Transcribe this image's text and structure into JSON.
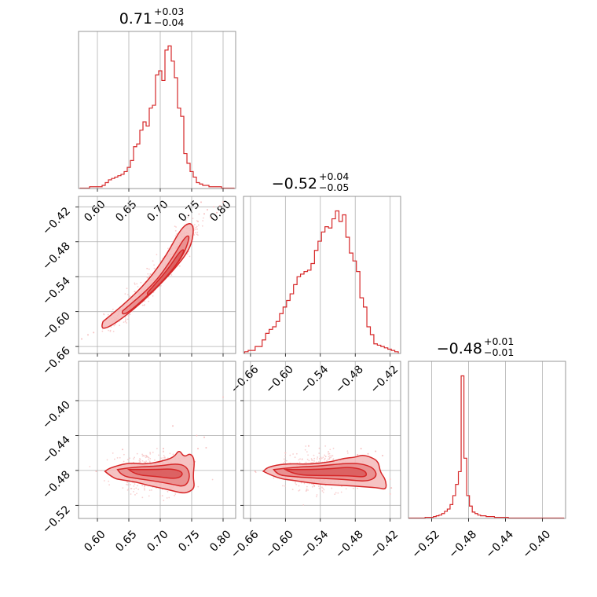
{
  "chart_data": [
    {
      "type": "histogram",
      "panel": "diag-0",
      "title": {
        "value": "0.71",
        "plus": "+0.03",
        "minus": "−0.04"
      },
      "xlim": [
        0.57,
        0.82
      ],
      "x_ticks": [
        "0.60",
        "0.65",
        "0.70",
        "0.75",
        "0.80"
      ],
      "x_tick_values": [
        0.6,
        0.65,
        0.7,
        0.75,
        0.8
      ],
      "bin_centers": [
        0.575,
        0.58,
        0.585,
        0.59,
        0.595,
        0.6,
        0.605,
        0.61,
        0.615,
        0.62,
        0.625,
        0.63,
        0.635,
        0.64,
        0.645,
        0.65,
        0.655,
        0.66,
        0.665,
        0.67,
        0.675,
        0.68,
        0.685,
        0.69,
        0.695,
        0.7,
        0.705,
        0.71,
        0.715,
        0.72,
        0.725,
        0.73,
        0.735,
        0.74,
        0.745,
        0.75,
        0.755,
        0.76,
        0.765,
        0.77,
        0.775,
        0.78,
        0.785,
        0.79,
        0.795,
        0.8,
        0.805,
        0.81,
        0.815
      ],
      "counts": [
        0,
        0,
        0,
        1,
        1,
        1,
        1,
        2,
        4,
        6,
        7,
        8,
        9,
        10,
        12,
        15,
        20,
        30,
        32,
        42,
        48,
        45,
        58,
        60,
        82,
        85,
        78,
        100,
        103,
        92,
        80,
        58,
        52,
        25,
        18,
        12,
        8,
        4,
        3,
        2,
        2,
        1,
        1,
        1,
        1,
        0,
        0,
        0,
        0
      ]
    },
    {
      "type": "histogram",
      "panel": "diag-1",
      "title": {
        "value": "−0.52",
        "plus": "+0.04",
        "minus": "−0.05"
      },
      "xlim": [
        -0.672,
        -0.402
      ],
      "x_ticks": [
        "−0.66",
        "−0.60",
        "−0.54",
        "−0.48",
        "−0.42"
      ],
      "x_tick_values": [
        -0.66,
        -0.6,
        -0.54,
        -0.48,
        -0.42
      ],
      "bin_centers": [
        -0.667,
        -0.661,
        -0.655,
        -0.649,
        -0.643,
        -0.637,
        -0.631,
        -0.625,
        -0.619,
        -0.613,
        -0.607,
        -0.601,
        -0.595,
        -0.589,
        -0.583,
        -0.577,
        -0.571,
        -0.565,
        -0.559,
        -0.553,
        -0.547,
        -0.541,
        -0.535,
        -0.529,
        -0.523,
        -0.517,
        -0.511,
        -0.505,
        -0.499,
        -0.493,
        -0.487,
        -0.481,
        -0.475,
        -0.469,
        -0.463,
        -0.457,
        -0.451,
        -0.445,
        -0.439,
        -0.433,
        -0.427,
        -0.421,
        -0.415,
        -0.409
      ],
      "counts": [
        1,
        2,
        2,
        5,
        5,
        10,
        15,
        18,
        20,
        24,
        30,
        35,
        40,
        45,
        52,
        58,
        60,
        62,
        63,
        68,
        78,
        85,
        92,
        96,
        95,
        102,
        108,
        100,
        105,
        88,
        76,
        70,
        62,
        42,
        35,
        20,
        14,
        7,
        6,
        5,
        4,
        3,
        2,
        1
      ]
    },
    {
      "type": "histogram",
      "panel": "diag-2",
      "title": {
        "value": "−0.48",
        "plus": "+0.01",
        "minus": "−0.01"
      },
      "xlim": [
        -0.545,
        -0.375
      ],
      "x_ticks": [
        "−0.52",
        "−0.48",
        "−0.44",
        "−0.40"
      ],
      "x_tick_values": [
        -0.52,
        -0.48,
        -0.44,
        -0.4
      ],
      "bin_centers": [
        -0.5435,
        -0.5405,
        -0.5375,
        -0.5345,
        -0.5315,
        -0.5285,
        -0.5255,
        -0.5225,
        -0.5195,
        -0.5165,
        -0.5135,
        -0.5105,
        -0.5075,
        -0.5045,
        -0.5015,
        -0.4985,
        -0.4955,
        -0.4925,
        -0.4895,
        -0.4865,
        -0.4835,
        -0.4805,
        -0.4775,
        -0.4745,
        -0.4715,
        -0.4685,
        -0.4655,
        -0.4625,
        -0.4595,
        -0.4565,
        -0.4535,
        -0.4505,
        -0.4475,
        -0.4445,
        -0.4415,
        -0.4385,
        -0.4355,
        -0.4325,
        -0.4295,
        -0.4265,
        -0.4235,
        -0.4205,
        -0.4175,
        -0.4145,
        -0.4115,
        -0.4085,
        -0.4055,
        -0.4025,
        -0.3995,
        -0.3965,
        -0.3935,
        -0.3905,
        -0.3875,
        -0.3845,
        -0.3815,
        -0.3785
      ],
      "counts": [
        0,
        0,
        0,
        0,
        0,
        0,
        1,
        1,
        1,
        2,
        3,
        4,
        6,
        9,
        12,
        18,
        30,
        45,
        62,
        190,
        80,
        30,
        16,
        8,
        6,
        4,
        3,
        3,
        2,
        2,
        2,
        1,
        1,
        1,
        1,
        1,
        0,
        0,
        0,
        0,
        0,
        0,
        0,
        0,
        0,
        0,
        0,
        0,
        0,
        0,
        0,
        0,
        0,
        0,
        0,
        0
      ]
    },
    {
      "type": "scatter-contour",
      "panel": "pair-1-0",
      "xlim": [
        0.57,
        0.82
      ],
      "ylim": [
        -0.672,
        -0.402
      ],
      "x_tick_values": [
        0.6,
        0.65,
        0.7,
        0.75,
        0.8
      ],
      "y_ticks": [
        "−0.42",
        "−0.48",
        "−0.54",
        "−0.60",
        "−0.66"
      ],
      "y_tick_values": [
        -0.42,
        -0.48,
        -0.54,
        -0.6,
        -0.66
      ],
      "ridge": [
        [
          0.612,
          -0.628
        ],
        [
          0.64,
          -0.603
        ],
        [
          0.67,
          -0.573
        ],
        [
          0.7,
          -0.532
        ],
        [
          0.73,
          -0.488
        ],
        [
          0.755,
          -0.447
        ]
      ],
      "contour_levels": [
        [
          [
            0.609,
            -0.617
          ],
          [
            0.645,
            -0.585
          ],
          [
            0.68,
            -0.548
          ],
          [
            0.71,
            -0.503
          ],
          [
            0.733,
            -0.457
          ],
          [
            0.748,
            -0.446
          ],
          [
            0.754,
            -0.458
          ],
          [
            0.748,
            -0.492
          ],
          [
            0.722,
            -0.528
          ],
          [
            0.685,
            -0.57
          ],
          [
            0.648,
            -0.605
          ],
          [
            0.617,
            -0.628
          ],
          [
            0.605,
            -0.629
          ]
        ],
        [
          [
            0.64,
            -0.599
          ],
          [
            0.69,
            -0.553
          ],
          [
            0.72,
            -0.507
          ],
          [
            0.74,
            -0.47
          ],
          [
            0.748,
            -0.47
          ],
          [
            0.735,
            -0.508
          ],
          [
            0.7,
            -0.552
          ],
          [
            0.652,
            -0.6
          ],
          [
            0.638,
            -0.606
          ]
        ],
        [
          [
            0.68,
            -0.567
          ],
          [
            0.712,
            -0.528
          ],
          [
            0.732,
            -0.495
          ],
          [
            0.74,
            -0.493
          ],
          [
            0.724,
            -0.523
          ],
          [
            0.69,
            -0.564
          ],
          [
            0.678,
            -0.573
          ]
        ]
      ],
      "outliers": [
        [
          0.575,
          -0.647
        ],
        [
          0.585,
          -0.64
        ],
        [
          0.594,
          -0.636
        ],
        [
          0.77,
          -0.432
        ],
        [
          0.775,
          -0.425
        ],
        [
          0.785,
          -0.42
        ],
        [
          0.795,
          -0.418
        ],
        [
          0.765,
          -0.412
        ],
        [
          0.78,
          -0.438
        ],
        [
          0.79,
          -0.43
        ],
        [
          0.76,
          -0.445
        ],
        [
          0.8,
          -0.412
        ]
      ]
    },
    {
      "type": "scatter-contour",
      "panel": "pair-2-0",
      "xlim": [
        0.57,
        0.82
      ],
      "ylim": [
        -0.535,
        -0.355
      ],
      "x_ticks": [
        "0.60",
        "0.65",
        "0.70",
        "0.75",
        "0.80"
      ],
      "x_tick_values": [
        0.6,
        0.65,
        0.7,
        0.75,
        0.8
      ],
      "y_ticks": [
        "−0.40",
        "−0.44",
        "−0.48",
        "−0.52"
      ],
      "y_tick_values": [
        -0.4,
        -0.44,
        -0.48,
        -0.52
      ],
      "center": [
        0.685,
        -0.482
      ],
      "contour_levels": [
        [
          [
            0.612,
            -0.481
          ],
          [
            0.62,
            -0.477
          ],
          [
            0.65,
            -0.471
          ],
          [
            0.675,
            -0.473
          ],
          [
            0.7,
            -0.47
          ],
          [
            0.722,
            -0.465
          ],
          [
            0.73,
            -0.456
          ],
          [
            0.738,
            -0.465
          ],
          [
            0.748,
            -0.46
          ],
          [
            0.755,
            -0.468
          ],
          [
            0.752,
            -0.487
          ],
          [
            0.755,
            -0.5
          ],
          [
            0.745,
            -0.505
          ],
          [
            0.735,
            -0.506
          ],
          [
            0.718,
            -0.503
          ],
          [
            0.7,
            -0.5
          ],
          [
            0.68,
            -0.497
          ],
          [
            0.66,
            -0.493
          ],
          [
            0.64,
            -0.491
          ],
          [
            0.625,
            -0.489
          ]
        ],
        [
          [
            0.632,
            -0.479
          ],
          [
            0.66,
            -0.476
          ],
          [
            0.7,
            -0.475
          ],
          [
            0.725,
            -0.472
          ],
          [
            0.742,
            -0.475
          ],
          [
            0.748,
            -0.487
          ],
          [
            0.74,
            -0.499
          ],
          [
            0.72,
            -0.496
          ],
          [
            0.69,
            -0.492
          ],
          [
            0.66,
            -0.489
          ],
          [
            0.638,
            -0.486
          ]
        ],
        [
          [
            0.65,
            -0.479
          ],
          [
            0.69,
            -0.479
          ],
          [
            0.722,
            -0.478
          ],
          [
            0.738,
            -0.483
          ],
          [
            0.728,
            -0.49
          ],
          [
            0.695,
            -0.487
          ],
          [
            0.66,
            -0.485
          ]
        ]
      ],
      "outliers": [
        [
          0.598,
          -0.481
        ],
        [
          0.752,
          -0.468
        ],
        [
          0.755,
          -0.47
        ],
        [
          0.76,
          -0.455
        ],
        [
          0.758,
          -0.44
        ],
        [
          0.77,
          -0.442
        ],
        [
          0.773,
          -0.454
        ],
        [
          0.72,
          -0.429
        ],
        [
          0.705,
          -0.455
        ],
        [
          0.64,
          -0.456
        ],
        [
          0.8,
          -0.396
        ]
      ]
    },
    {
      "type": "scatter-contour",
      "panel": "pair-2-1",
      "xlim": [
        -0.672,
        -0.402
      ],
      "ylim": [
        -0.535,
        -0.355
      ],
      "x_ticks": [
        "−0.66",
        "−0.60",
        "−0.54",
        "−0.48",
        "−0.42"
      ],
      "x_tick_values": [
        -0.66,
        -0.6,
        -0.54,
        -0.48,
        -0.42
      ],
      "y_tick_values": [
        -0.4,
        -0.44,
        -0.48,
        -0.52
      ],
      "center": [
        -0.545,
        -0.482
      ],
      "contour_levels": [
        [
          [
            -0.638,
            -0.481
          ],
          [
            -0.63,
            -0.476
          ],
          [
            -0.6,
            -0.472
          ],
          [
            -0.56,
            -0.473
          ],
          [
            -0.52,
            -0.47
          ],
          [
            -0.5,
            -0.466
          ],
          [
            -0.48,
            -0.465
          ],
          [
            -0.468,
            -0.462
          ],
          [
            -0.452,
            -0.465
          ],
          [
            -0.44,
            -0.47
          ],
          [
            -0.437,
            -0.482
          ],
          [
            -0.428,
            -0.49
          ],
          [
            -0.426,
            -0.502
          ],
          [
            -0.44,
            -0.5
          ],
          [
            -0.46,
            -0.499
          ],
          [
            -0.5,
            -0.497
          ],
          [
            -0.54,
            -0.496
          ],
          [
            -0.58,
            -0.492
          ],
          [
            -0.615,
            -0.489
          ]
        ],
        [
          [
            -0.62,
            -0.479
          ],
          [
            -0.58,
            -0.476
          ],
          [
            -0.54,
            -0.475
          ],
          [
            -0.5,
            -0.472
          ],
          [
            -0.47,
            -0.472
          ],
          [
            -0.448,
            -0.477
          ],
          [
            -0.442,
            -0.487
          ],
          [
            -0.46,
            -0.493
          ],
          [
            -0.5,
            -0.49
          ],
          [
            -0.545,
            -0.489
          ],
          [
            -0.59,
            -0.487
          ],
          [
            -0.614,
            -0.485
          ]
        ],
        [
          [
            -0.6,
            -0.479
          ],
          [
            -0.56,
            -0.479
          ],
          [
            -0.52,
            -0.478
          ],
          [
            -0.488,
            -0.476
          ],
          [
            -0.462,
            -0.48
          ],
          [
            -0.46,
            -0.488
          ],
          [
            -0.492,
            -0.486
          ],
          [
            -0.54,
            -0.486
          ],
          [
            -0.585,
            -0.485
          ]
        ]
      ],
      "outliers": [
        [
          -0.652,
          -0.481
        ],
        [
          -0.476,
          -0.462
        ],
        [
          -0.47,
          -0.455
        ],
        [
          -0.458,
          -0.461
        ],
        [
          -0.445,
          -0.458
        ],
        [
          -0.433,
          -0.463
        ],
        [
          -0.42,
          -0.49
        ],
        [
          -0.418,
          -0.5
        ],
        [
          -0.42,
          -0.507
        ],
        [
          -0.6,
          -0.46
        ],
        [
          -0.56,
          -0.452
        ]
      ]
    }
  ],
  "colors": {
    "series": "#d62728",
    "fill_light": "#f4b9b9",
    "fill_mid": "#e88888",
    "fill_dark": "#d9595a",
    "scatter": "#f6c0c0"
  }
}
